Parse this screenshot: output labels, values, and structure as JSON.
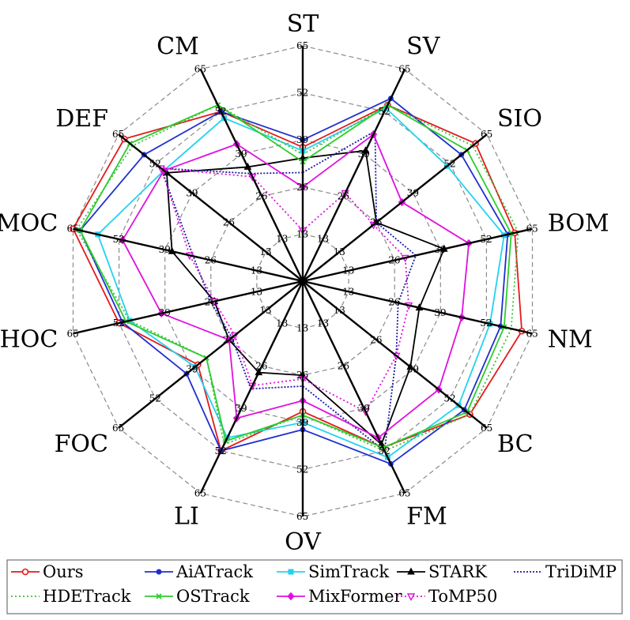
{
  "chart_data": {
    "type": "radar",
    "title": "",
    "categories": [
      "ST",
      "SV",
      "SIO",
      "BOM",
      "NM",
      "BC",
      "FM",
      "OV",
      "LI",
      "FOC",
      "HOC",
      "MOC",
      "DEF",
      "CM"
    ],
    "rlim": [
      0,
      65
    ],
    "ring_ticks": [
      13,
      26,
      39,
      52,
      65
    ],
    "tick_labels": [
      "13",
      "26",
      "39",
      "52",
      "65"
    ],
    "grid": true,
    "legend_position": "bottom",
    "series": [
      {
        "name": "Ours",
        "color": "#e31a1c",
        "dash": "",
        "marker": "circle-open",
        "values": [
          37,
          54,
          61,
          60,
          62,
          59,
          51,
          36,
          52,
          37,
          52,
          65,
          63,
          52
        ]
      },
      {
        "name": "AiATrack",
        "color": "#1f2fcf",
        "dash": "",
        "marker": "dot",
        "values": [
          39,
          56,
          56,
          58,
          56,
          57,
          56,
          41,
          52,
          41,
          51,
          63,
          56,
          52
        ]
      },
      {
        "name": "SimTrack",
        "color": "#22d3ee",
        "dash": "",
        "marker": "square",
        "values": [
          36,
          53,
          51,
          57,
          53,
          55,
          54,
          39,
          48,
          38,
          49,
          58,
          49,
          50
        ]
      },
      {
        "name": "STARK",
        "color": "#000000",
        "dash": "",
        "marker": "triangle",
        "values": [
          34,
          40,
          26,
          40,
          33,
          38,
          50,
          26,
          28,
          26,
          25,
          37,
          48,
          35
        ]
      },
      {
        "name": "TriDiMP",
        "color": "#1a1a9e",
        "dash": "2,2",
        "marker": "none",
        "values": [
          30,
          46,
          26,
          32,
          27,
          33,
          52,
          29,
          33,
          25,
          26,
          31,
          50,
          33
        ]
      },
      {
        "name": "HDETrack",
        "color": "#3ac23a",
        "dash": "2,3",
        "marker": "none",
        "values": [
          35,
          54,
          60,
          61,
          59,
          59,
          52,
          37,
          50,
          34,
          49,
          64,
          60,
          54
        ]
      },
      {
        "name": "OSTrack",
        "color": "#2ecc2e",
        "dash": "",
        "marker": "x",
        "values": [
          33,
          54,
          58,
          59,
          57,
          58,
          51,
          37,
          49,
          34,
          50,
          63,
          61,
          54
        ]
      },
      {
        "name": "MixFormer",
        "color": "#e010e0",
        "dash": "",
        "marker": "diamond",
        "values": [
          26,
          45,
          35,
          47,
          45,
          48,
          48,
          33,
          42,
          26,
          40,
          51,
          49,
          42
        ]
      },
      {
        "name": "ToMP50",
        "color": "#e010e0",
        "dash": "2,3",
        "marker": "triangle-down",
        "values": [
          14,
          27,
          25,
          29,
          30,
          33,
          40,
          27,
          32,
          24,
          25,
          32,
          50,
          32
        ]
      }
    ]
  }
}
